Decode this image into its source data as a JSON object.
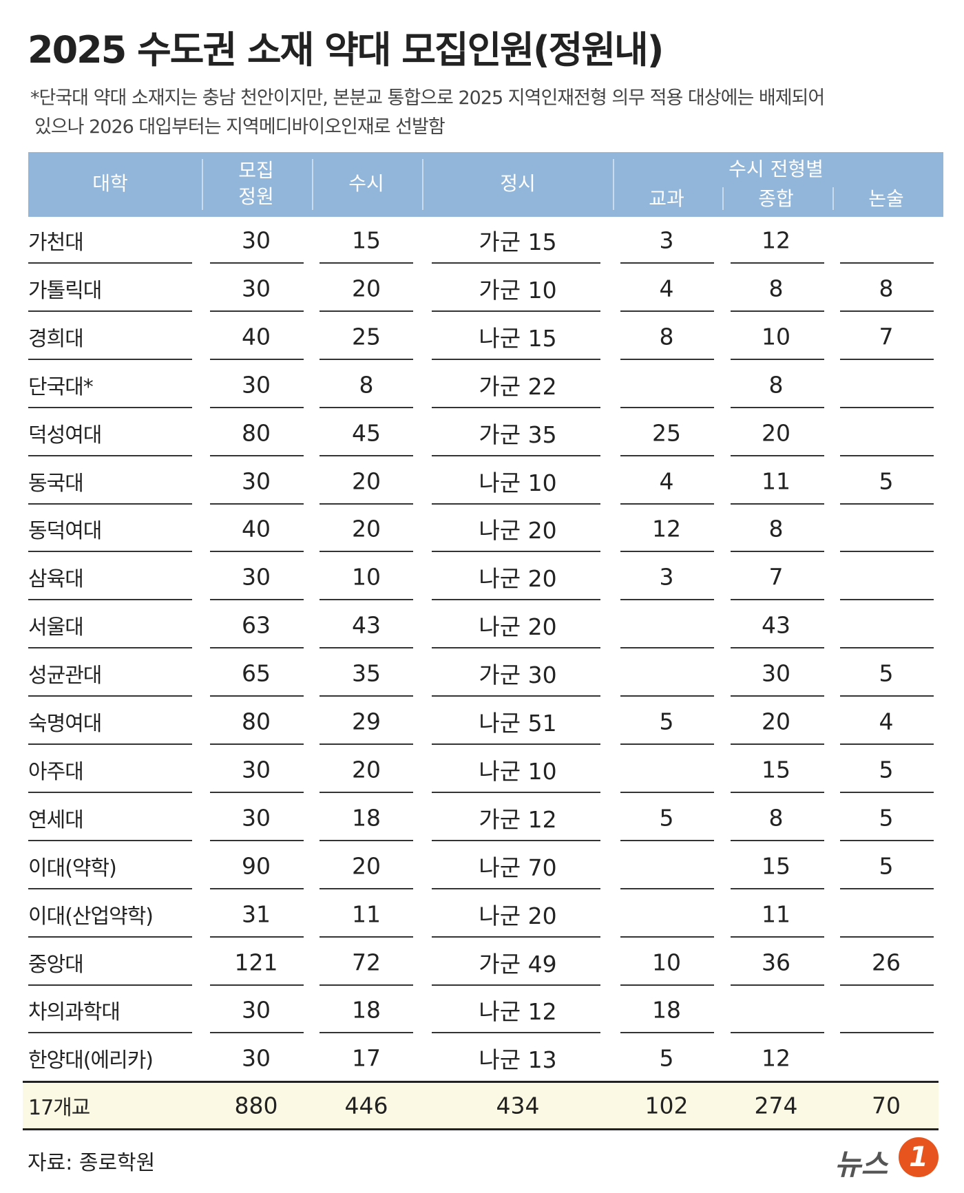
{
  "title": "2025 수도권 소재 약대 모집인원(정원내)",
  "note": [
    "*단국대 약대 소재지는 충남 천안이지만, 본분교 통합으로 2025 지역인재전형 의무 적용 대상에는 배제되어",
    "있으나 2026 대입부터는 지역메디바이오인재로 선발함"
  ],
  "table": {
    "columns": [
      "대학",
      "모집\n정원",
      "수시",
      "정시",
      "교과",
      "종합",
      "논술"
    ],
    "group": "수시 전형별",
    "rows": [
      [
        "가천대",
        30,
        15,
        "가군 15",
        3,
        12,
        null
      ],
      [
        "가톨릭대",
        30,
        20,
        "가군 10",
        4,
        8,
        8
      ],
      [
        "경희대",
        40,
        25,
        "나군 15",
        8,
        10,
        7
      ],
      [
        "단국대*",
        30,
        8,
        "가군 22",
        null,
        8,
        null
      ],
      [
        "덕성여대",
        80,
        45,
        "가군 35",
        25,
        20,
        null
      ],
      [
        "동국대",
        30,
        20,
        "나군 10",
        4,
        11,
        5
      ],
      [
        "동덕여대",
        40,
        20,
        "나군 20",
        12,
        8,
        null
      ],
      [
        "삼육대",
        30,
        10,
        "나군 20",
        3,
        7,
        null
      ],
      [
        "서울대",
        63,
        43,
        "나군 20",
        null,
        43,
        null
      ],
      [
        "성균관대",
        65,
        35,
        "가군 30",
        null,
        30,
        5
      ],
      [
        "숙명여대",
        80,
        29,
        "나군 51",
        5,
        20,
        4
      ],
      [
        "아주대",
        30,
        20,
        "나군 10",
        null,
        15,
        5
      ],
      [
        "연세대",
        30,
        18,
        "가군 12",
        5,
        8,
        5
      ],
      [
        "이대(약학)",
        90,
        20,
        "나군 70",
        null,
        15,
        5
      ],
      [
        "이대(산업약학)",
        31,
        11,
        "나군 20",
        null,
        11,
        null
      ],
      [
        "중앙대",
        121,
        72,
        "가군 49",
        10,
        36,
        26
      ],
      [
        "차의과학대",
        30,
        18,
        "나군 12",
        18,
        null,
        null
      ],
      [
        "한양대(에리카)",
        30,
        17,
        "나군 13",
        5,
        12,
        null
      ]
    ],
    "total": [
      "17개교",
      880,
      446,
      434,
      102,
      274,
      70
    ]
  },
  "source": "자료: 종로학원",
  "logo": {
    "text": "뉴스",
    "mark": "1"
  }
}
